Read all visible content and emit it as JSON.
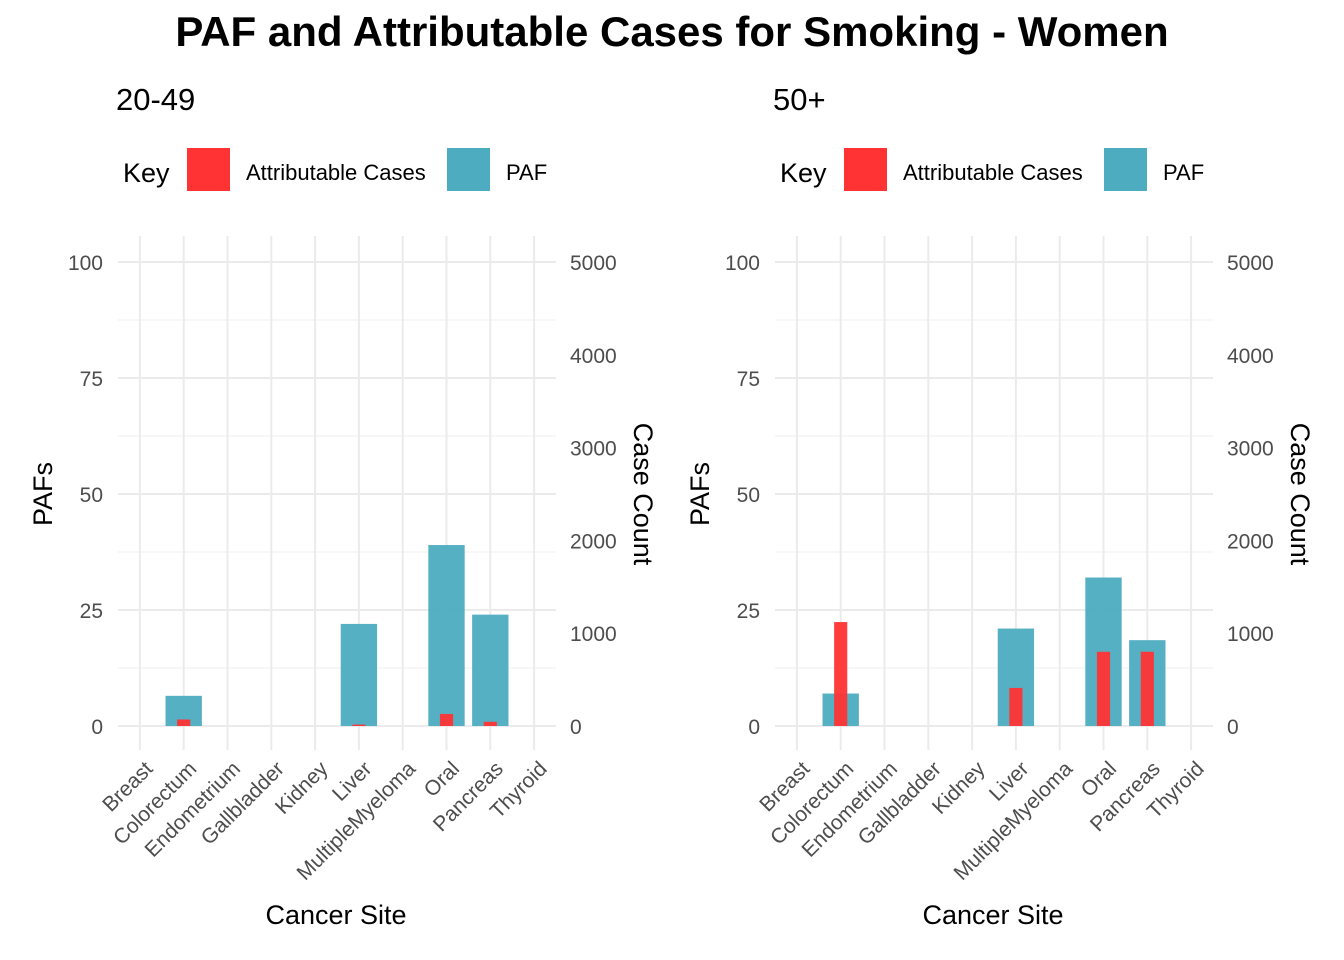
{
  "title": "PAF and Attributable Cases for Smoking - Women",
  "colors": {
    "attributable": "#FF3333",
    "paf": "#4DACC0",
    "grid": "#EBEBEB",
    "axis_text": "#4D4D4D"
  },
  "chart_data": [
    {
      "type": "bar",
      "subtitle": "20-49",
      "legend": {
        "title": "Key",
        "items": [
          "Attributable Cases",
          "PAF"
        ],
        "position": "top"
      },
      "xlabel": "Cancer Site",
      "ylabel": "PAFs",
      "y2label": "Case Count",
      "ylim": [
        0,
        100
      ],
      "y2lim": [
        0,
        5000
      ],
      "yticks": [
        0,
        25,
        50,
        75,
        100
      ],
      "y2ticks": [
        0,
        1000,
        2000,
        3000,
        4000,
        5000
      ],
      "categories": [
        "Breast",
        "Colorectum",
        "Endometrium",
        "Gallbladder",
        "Kidney",
        "Liver",
        "MultipleMyeloma",
        "Oral",
        "Pancreas",
        "Thyroid"
      ],
      "series": [
        {
          "name": "PAF",
          "axis": "left",
          "values": [
            0,
            6.5,
            0,
            0,
            0,
            22,
            0,
            39,
            24,
            0
          ]
        },
        {
          "name": "Attributable Cases",
          "axis": "right",
          "values": [
            0,
            70,
            0,
            0,
            0,
            15,
            0,
            130,
            45,
            0
          ]
        }
      ]
    },
    {
      "type": "bar",
      "subtitle": "50+",
      "legend": {
        "title": "Key",
        "items": [
          "Attributable Cases",
          "PAF"
        ],
        "position": "top"
      },
      "xlabel": "Cancer Site",
      "ylabel": "PAFs",
      "y2label": "Case Count",
      "ylim": [
        0,
        100
      ],
      "y2lim": [
        0,
        5000
      ],
      "yticks": [
        0,
        25,
        50,
        75,
        100
      ],
      "y2ticks": [
        0,
        1000,
        2000,
        3000,
        4000,
        5000
      ],
      "categories": [
        "Breast",
        "Colorectum",
        "Endometrium",
        "Gallbladder",
        "Kidney",
        "Liver",
        "MultipleMyeloma",
        "Oral",
        "Pancreas",
        "Thyroid"
      ],
      "series": [
        {
          "name": "PAF",
          "axis": "left",
          "values": [
            0,
            7,
            0,
            0,
            0,
            21,
            0,
            32,
            18.5,
            0
          ]
        },
        {
          "name": "Attributable Cases",
          "axis": "right",
          "values": [
            0,
            1120,
            0,
            0,
            0,
            410,
            0,
            800,
            800,
            0
          ]
        }
      ]
    }
  ]
}
